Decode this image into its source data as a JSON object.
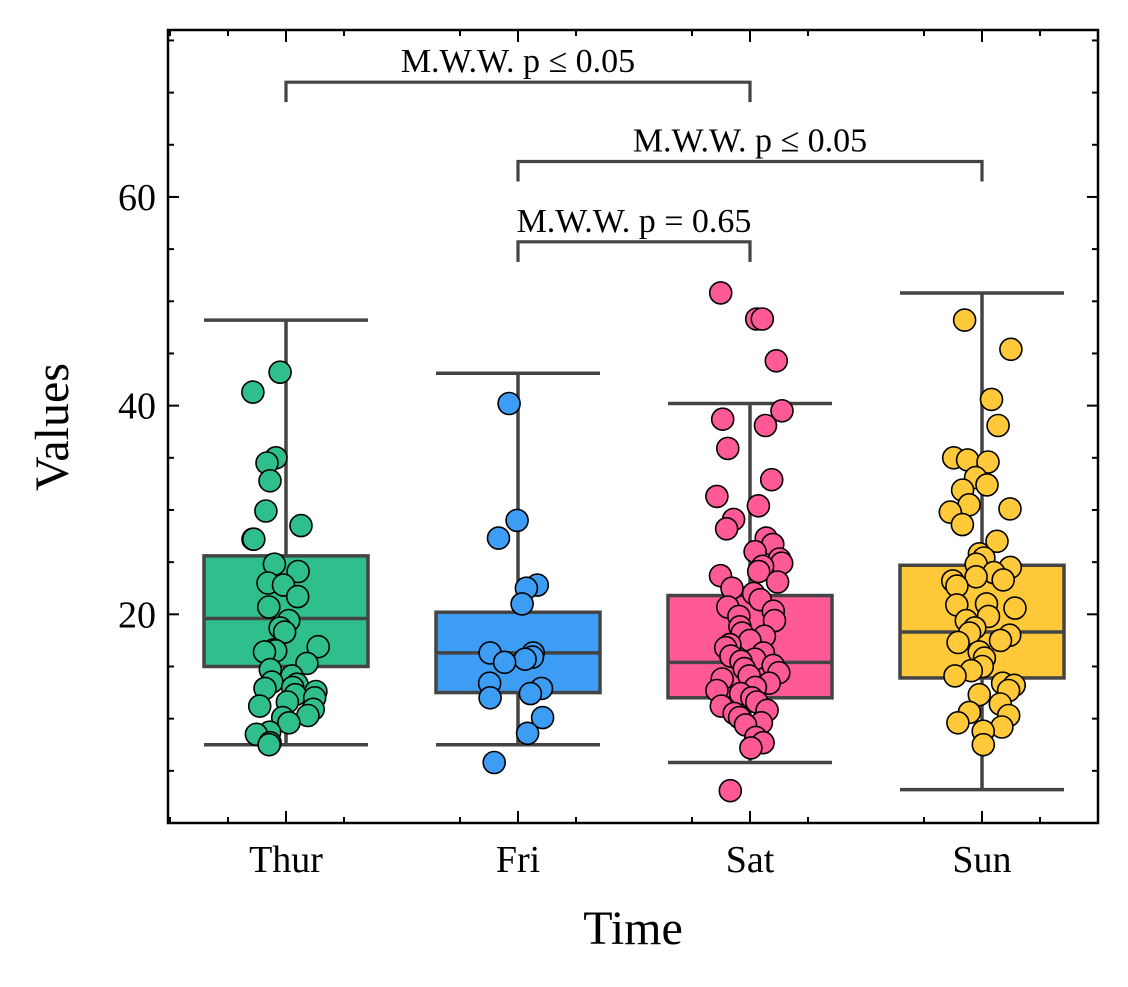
{
  "chart_data": {
    "type": "box",
    "xlabel": "Time",
    "ylabel": "Values",
    "ylim": [
      0,
      76
    ],
    "yticks": [
      20,
      40,
      60
    ],
    "categories": [
      "Thur",
      "Fri",
      "Sat",
      "Sun"
    ],
    "colors": [
      "#2fbf8c",
      "#3d9df5",
      "#ff5a96",
      "#ffc93a"
    ],
    "boxes": [
      {
        "category": "Thur",
        "whisker_low": 7.5,
        "q1": 15.0,
        "median": 19.6,
        "q3": 25.6,
        "whisker_high": 48.2
      },
      {
        "category": "Fri",
        "whisker_low": 7.5,
        "q1": 12.5,
        "median": 16.3,
        "q3": 20.2,
        "whisker_high": 43.1
      },
      {
        "category": "Sat",
        "whisker_low": 5.8,
        "q1": 12.0,
        "median": 15.4,
        "q3": 21.8,
        "whisker_high": 40.2
      },
      {
        "category": "Sun",
        "whisker_low": 3.2,
        "q1": 13.9,
        "median": 18.3,
        "q3": 24.7,
        "whisker_high": 50.8
      }
    ],
    "points": [
      {
        "category": "Thur",
        "values": [
          43.2,
          41.3,
          35.0,
          34.5,
          32.8,
          29.9,
          28.5,
          27.2,
          27.2,
          24.8,
          24.1,
          23.0,
          22.8,
          21.7,
          20.7,
          19.4,
          18.7,
          18.3,
          16.9,
          16.6,
          16.5,
          16.4,
          15.3,
          14.7,
          14.1,
          13.5,
          13.3,
          13.0,
          12.9,
          12.6,
          12.3,
          12.0,
          11.6,
          11.2,
          10.9,
          10.3,
          10.1,
          9.6,
          8.7,
          8.5,
          7.7,
          7.5
        ]
      },
      {
        "category": "Fri",
        "values": [
          40.2,
          29.0,
          27.3,
          22.8,
          22.5,
          21.0,
          16.3,
          16.3,
          15.9,
          15.7,
          15.4,
          13.4,
          12.9,
          12.4,
          12.0,
          10.1,
          8.6,
          5.8
        ]
      },
      {
        "category": "Sat",
        "values": [
          50.8,
          48.3,
          48.3,
          44.3,
          39.5,
          38.7,
          38.1,
          35.9,
          32.9,
          31.3,
          30.4,
          29.1,
          28.2,
          27.3,
          26.7,
          26.0,
          25.3,
          24.9,
          24.6,
          24.1,
          23.7,
          23.1,
          22.5,
          22.0,
          21.4,
          20.7,
          20.3,
          19.8,
          19.4,
          18.8,
          18.2,
          17.9,
          17.5,
          17.1,
          16.8,
          16.3,
          16.0,
          15.7,
          15.5,
          15.1,
          14.8,
          14.4,
          14.1,
          13.8,
          13.4,
          13.0,
          12.7,
          12.4,
          12.0,
          11.6,
          11.2,
          10.8,
          10.5,
          10.1,
          9.6,
          9.4,
          8.2,
          7.7,
          7.2,
          3.1
        ]
      },
      {
        "category": "Sun",
        "values": [
          48.2,
          45.4,
          40.6,
          38.1,
          35.0,
          34.8,
          34.6,
          33.1,
          32.4,
          31.9,
          30.5,
          30.1,
          29.8,
          28.6,
          27.0,
          25.8,
          25.4,
          24.8,
          24.5,
          24.0,
          23.6,
          23.3,
          23.2,
          22.7,
          21.0,
          20.9,
          20.6,
          19.8,
          19.4,
          18.7,
          18.2,
          18.0,
          17.5,
          17.3,
          16.4,
          15.8,
          15.0,
          14.6,
          14.1,
          13.4,
          13.2,
          12.7,
          12.3,
          11.4,
          10.6,
          10.3,
          9.6,
          9.2,
          8.8,
          7.5
        ]
      }
    ],
    "annotations": [
      {
        "from": "Thur",
        "to": "Sat",
        "label": "M.W.W. p ≤ 0.05",
        "bracket_y": 71.0
      },
      {
        "from": "Fri",
        "to": "Sun",
        "label": "M.W.W. p ≤ 0.05",
        "bracket_y": 63.4
      },
      {
        "from": "Fri",
        "to": "Sat",
        "label": "M.W.W. p = 0.65",
        "bracket_y": 55.7
      }
    ]
  }
}
